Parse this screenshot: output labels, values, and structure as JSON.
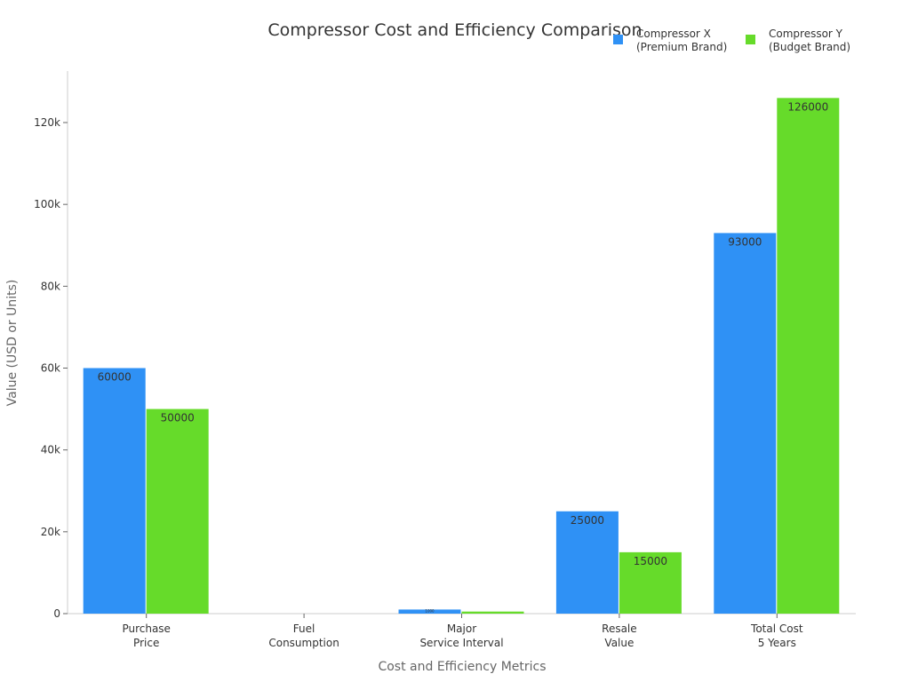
{
  "chart_data": {
    "type": "bar",
    "title": "Compressor Cost and Efficiency Comparison",
    "xlabel": "Cost and Efficiency Metrics",
    "ylabel": "Value (USD or Units)",
    "ylim": [
      0,
      132000
    ],
    "yticks": [
      0,
      20000,
      40000,
      60000,
      80000,
      100000,
      120000
    ],
    "ytick_labels": [
      "0",
      "20k",
      "40k",
      "60k",
      "80k",
      "100k",
      "120k"
    ],
    "categories": [
      [
        "Purchase",
        "Price"
      ],
      [
        "Fuel",
        "Consumption"
      ],
      [
        "Major",
        "Service Interval"
      ],
      [
        "Resale",
        "Value"
      ],
      [
        "Total Cost",
        "5 Years"
      ]
    ],
    "series": [
      {
        "name": [
          "Compressor X",
          "(Premium Brand)"
        ],
        "color": "#2f91f5",
        "values": [
          60000,
          0,
          1000,
          25000,
          93000
        ],
        "labels": [
          "60000",
          "",
          "1000",
          "25000",
          "93000"
        ]
      },
      {
        "name": [
          "Compressor Y",
          "(Budget Brand)"
        ],
        "color": "#66db2a",
        "values": [
          50000,
          0,
          500,
          15000,
          126000
        ],
        "labels": [
          "50000",
          "",
          "",
          "15000",
          "126000"
        ]
      }
    ],
    "grid": false,
    "legend": "top-right"
  }
}
